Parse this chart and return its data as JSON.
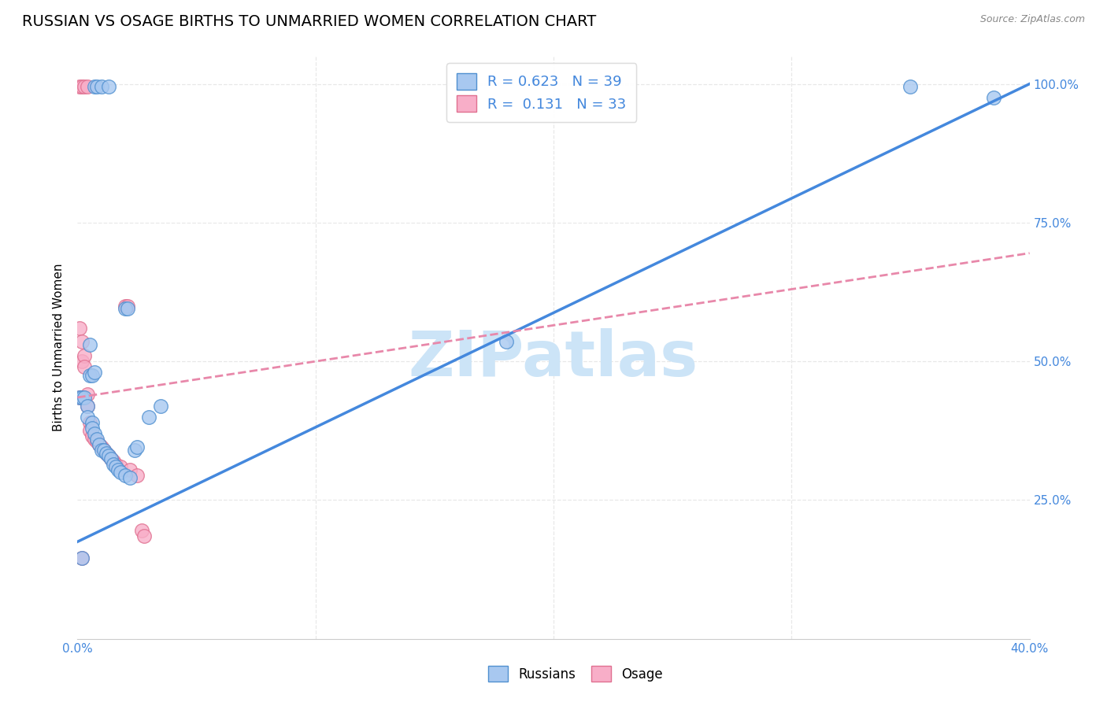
{
  "title": "RUSSIAN VS OSAGE BIRTHS TO UNMARRIED WOMEN CORRELATION CHART",
  "source": "Source: ZipAtlas.com",
  "ylabel": "Births to Unmarried Women",
  "x_min": 0.0,
  "x_max": 0.4,
  "y_min": 0.0,
  "y_max": 1.05,
  "y_ticks": [
    0.25,
    0.5,
    0.75,
    1.0
  ],
  "y_tick_labels": [
    "25.0%",
    "50.0%",
    "75.0%",
    "100.0%"
  ],
  "x_tick_positions": [
    0.0,
    0.1,
    0.2,
    0.3,
    0.4
  ],
  "x_tick_labels": [
    "0.0%",
    "",
    "",
    "",
    "40.0%"
  ],
  "russian_R": 0.623,
  "russian_N": 39,
  "osage_R": 0.131,
  "osage_N": 33,
  "russian_color": "#a8c8f0",
  "osage_color": "#f8aec8",
  "russian_edge_color": "#5090d0",
  "osage_edge_color": "#e07090",
  "russian_line_color": "#4488dd",
  "osage_line_color": "#e888aa",
  "tick_color": "#4488dd",
  "russian_scatter": [
    [
      0.001,
      0.435
    ],
    [
      0.002,
      0.435
    ],
    [
      0.007,
      0.995
    ],
    [
      0.008,
      0.995
    ],
    [
      0.01,
      0.995
    ],
    [
      0.013,
      0.995
    ],
    [
      0.002,
      0.145
    ],
    [
      0.02,
      0.595
    ],
    [
      0.021,
      0.595
    ],
    [
      0.003,
      0.435
    ],
    [
      0.005,
      0.53
    ],
    [
      0.005,
      0.475
    ],
    [
      0.006,
      0.475
    ],
    [
      0.007,
      0.48
    ],
    [
      0.004,
      0.42
    ],
    [
      0.004,
      0.4
    ],
    [
      0.006,
      0.39
    ],
    [
      0.006,
      0.38
    ],
    [
      0.007,
      0.37
    ],
    [
      0.008,
      0.36
    ],
    [
      0.009,
      0.35
    ],
    [
      0.01,
      0.34
    ],
    [
      0.011,
      0.34
    ],
    [
      0.012,
      0.335
    ],
    [
      0.013,
      0.33
    ],
    [
      0.014,
      0.325
    ],
    [
      0.015,
      0.315
    ],
    [
      0.016,
      0.31
    ],
    [
      0.017,
      0.305
    ],
    [
      0.018,
      0.3
    ],
    [
      0.02,
      0.295
    ],
    [
      0.022,
      0.29
    ],
    [
      0.024,
      0.34
    ],
    [
      0.025,
      0.345
    ],
    [
      0.03,
      0.4
    ],
    [
      0.035,
      0.42
    ],
    [
      0.18,
      0.535
    ],
    [
      0.35,
      0.995
    ],
    [
      0.385,
      0.975
    ]
  ],
  "osage_scatter": [
    [
      0.001,
      0.995
    ],
    [
      0.002,
      0.995
    ],
    [
      0.003,
      0.995
    ],
    [
      0.004,
      0.995
    ],
    [
      0.002,
      0.145
    ],
    [
      0.001,
      0.56
    ],
    [
      0.002,
      0.535
    ],
    [
      0.002,
      0.5
    ],
    [
      0.003,
      0.51
    ],
    [
      0.003,
      0.49
    ],
    [
      0.004,
      0.44
    ],
    [
      0.004,
      0.42
    ],
    [
      0.005,
      0.39
    ],
    [
      0.005,
      0.375
    ],
    [
      0.006,
      0.365
    ],
    [
      0.007,
      0.36
    ],
    [
      0.008,
      0.355
    ],
    [
      0.009,
      0.35
    ],
    [
      0.01,
      0.345
    ],
    [
      0.011,
      0.34
    ],
    [
      0.012,
      0.335
    ],
    [
      0.013,
      0.33
    ],
    [
      0.014,
      0.325
    ],
    [
      0.015,
      0.32
    ],
    [
      0.016,
      0.315
    ],
    [
      0.018,
      0.31
    ],
    [
      0.02,
      0.6
    ],
    [
      0.021,
      0.6
    ],
    [
      0.022,
      0.305
    ],
    [
      0.025,
      0.295
    ],
    [
      0.027,
      0.195
    ],
    [
      0.028,
      0.185
    ],
    [
      0.001,
      0.435
    ]
  ],
  "russian_trend_x": [
    0.0,
    0.4
  ],
  "russian_trend_y": [
    0.175,
    1.0
  ],
  "osage_trend_x": [
    0.0,
    0.4
  ],
  "osage_trend_y": [
    0.435,
    0.695
  ],
  "osage_trend_dashed": true,
  "background_color": "#ffffff",
  "grid_color": "#e8e8e8",
  "grid_linestyle": "--",
  "watermark": "ZIPatlas",
  "watermark_color": "#cce4f7",
  "title_fontsize": 14,
  "axis_label_fontsize": 11,
  "tick_fontsize": 11,
  "legend_fontsize": 13,
  "marker_size": 160,
  "marker_linewidth": 1.0
}
